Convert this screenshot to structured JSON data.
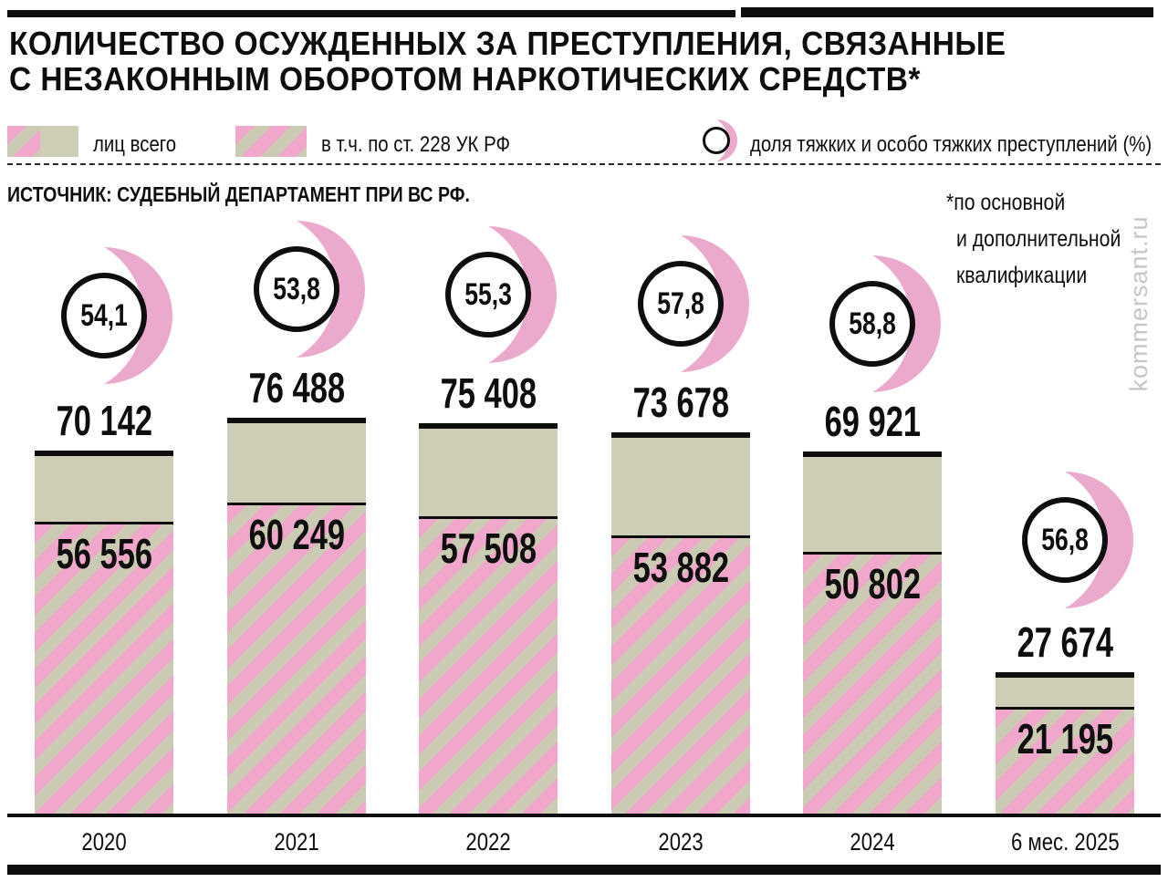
{
  "title": {
    "line1": "КОЛИЧЕСТВО ОСУЖДЕННЫХ ЗА ПРЕСТУПЛЕНИЯ, СВЯЗАННЫЕ",
    "line2": "С НЕЗАКОННЫМ ОБОРОТОМ НАРКОТИЧЕСКИХ СРЕДСТВ*"
  },
  "legend": {
    "items": [
      {
        "label": "лиц всего",
        "swatch": "total-beige-bar"
      },
      {
        "label": "в т.ч. по ст. 228 УК РФ",
        "swatch": "pink-striped-bar"
      },
      {
        "label": "доля тяжких и особо тяжких преступлений (%)",
        "swatch": "circle-gauge"
      }
    ]
  },
  "source": "ИСТОЧНИК: СУДЕБНЫЙ ДЕПАРТАМЕНТ ПРИ ВС РФ.",
  "footnote": {
    "lines": [
      "*по основной",
      "и дополнительной",
      "квалификации"
    ]
  },
  "watermark": "kommersant.ru",
  "colors": {
    "beige": "#cecdb6",
    "stripe_beige": "#cbcab2",
    "stripe_pink": "#f1a7cb",
    "gauge_pink": "#ebaacd",
    "ink": "#0e0e0e",
    "watermark_gray": "#c6c6c6"
  },
  "chart_data": {
    "type": "bar",
    "title": "КОЛИЧЕСТВО ОСУЖДЕННЫХ ЗА ПРЕСТУПЛЕНИЯ, СВЯЗАННЫЕ С НЕЗАКОННЫМ ОБОРОТОМ НАРКОТИЧЕСКИХ СРЕДСТВ*",
    "categories": [
      "2020",
      "2021",
      "2022",
      "2023",
      "2024",
      "6 мес. 2025"
    ],
    "series": [
      {
        "name": "лиц всего",
        "values": [
          70142,
          76488,
          75408,
          73678,
          69921,
          27674
        ],
        "display": [
          "70 142",
          "76 488",
          "75 408",
          "73 678",
          "69 921",
          "27 674"
        ]
      },
      {
        "name": "в т.ч. по ст. 228 УК РФ",
        "values": [
          56556,
          60249,
          57508,
          53882,
          50802,
          21195
        ],
        "display": [
          "56 556",
          "60 249",
          "57 508",
          "53 882",
          "50 802",
          "21 195"
        ]
      },
      {
        "name": "доля тяжких и особо тяжких преступлений (%)",
        "values": [
          54.1,
          53.8,
          55.3,
          57.8,
          58.8,
          56.8
        ],
        "display": [
          "54,1",
          "53,8",
          "55,3",
          "57,8",
          "58,8",
          "56,8"
        ]
      }
    ],
    "ylim": [
      0,
      80000
    ],
    "grid": false,
    "legend_position": "top",
    "xlabel": "",
    "ylabel": ""
  }
}
